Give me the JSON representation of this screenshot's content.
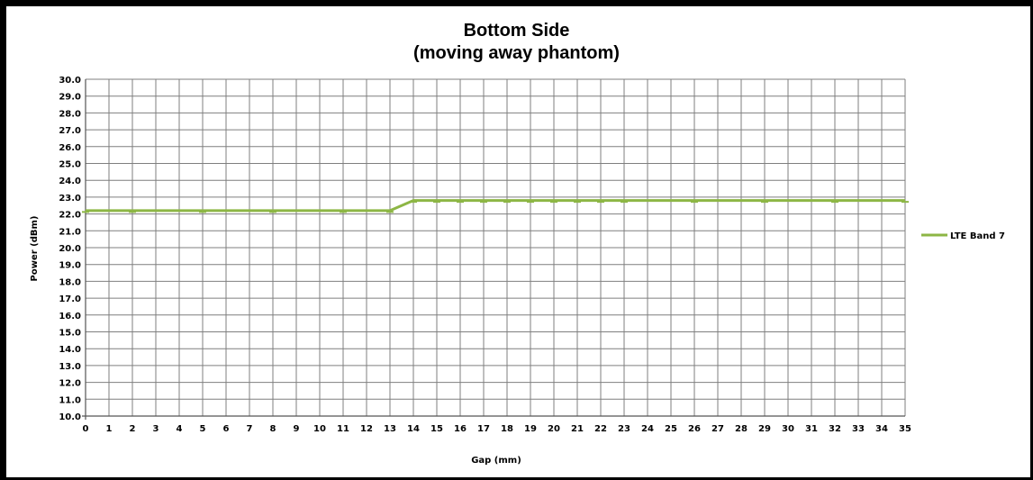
{
  "chart_data": {
    "type": "line",
    "title": "Bottom Side",
    "subtitle": "(moving away phantom)",
    "xlabel": "Gap (mm)",
    "ylabel": "Power (dBm)",
    "xlim": [
      0,
      35
    ],
    "ylim": [
      10,
      30
    ],
    "x_ticks": [
      "0",
      "1",
      "2",
      "3",
      "4",
      "5",
      "6",
      "7",
      "8",
      "9",
      "10",
      "11",
      "12",
      "13",
      "14",
      "15",
      "16",
      "17",
      "18",
      "19",
      "20",
      "21",
      "22",
      "23",
      "24",
      "25",
      "26",
      "27",
      "28",
      "29",
      "30",
      "31",
      "32",
      "33",
      "34",
      "35"
    ],
    "y_ticks": [
      "10.0",
      "11.0",
      "12.0",
      "13.0",
      "14.0",
      "15.0",
      "16.0",
      "17.0",
      "18.0",
      "19.0",
      "20.0",
      "21.0",
      "22.0",
      "23.0",
      "24.0",
      "25.0",
      "26.0",
      "27.0",
      "28.0",
      "29.0",
      "30.0"
    ],
    "grid": true,
    "legend_position": "right",
    "series": [
      {
        "name": "LTE Band 7",
        "color": "#8db645",
        "x": [
          0,
          2,
          5,
          8,
          11,
          13,
          14,
          15,
          16,
          17,
          18,
          19,
          20,
          21,
          22,
          23,
          26,
          29,
          32,
          35
        ],
        "y": [
          22.2,
          22.2,
          22.2,
          22.2,
          22.2,
          22.2,
          22.8,
          22.8,
          22.8,
          22.8,
          22.8,
          22.8,
          22.8,
          22.8,
          22.8,
          22.8,
          22.8,
          22.8,
          22.8,
          22.8
        ]
      }
    ]
  }
}
